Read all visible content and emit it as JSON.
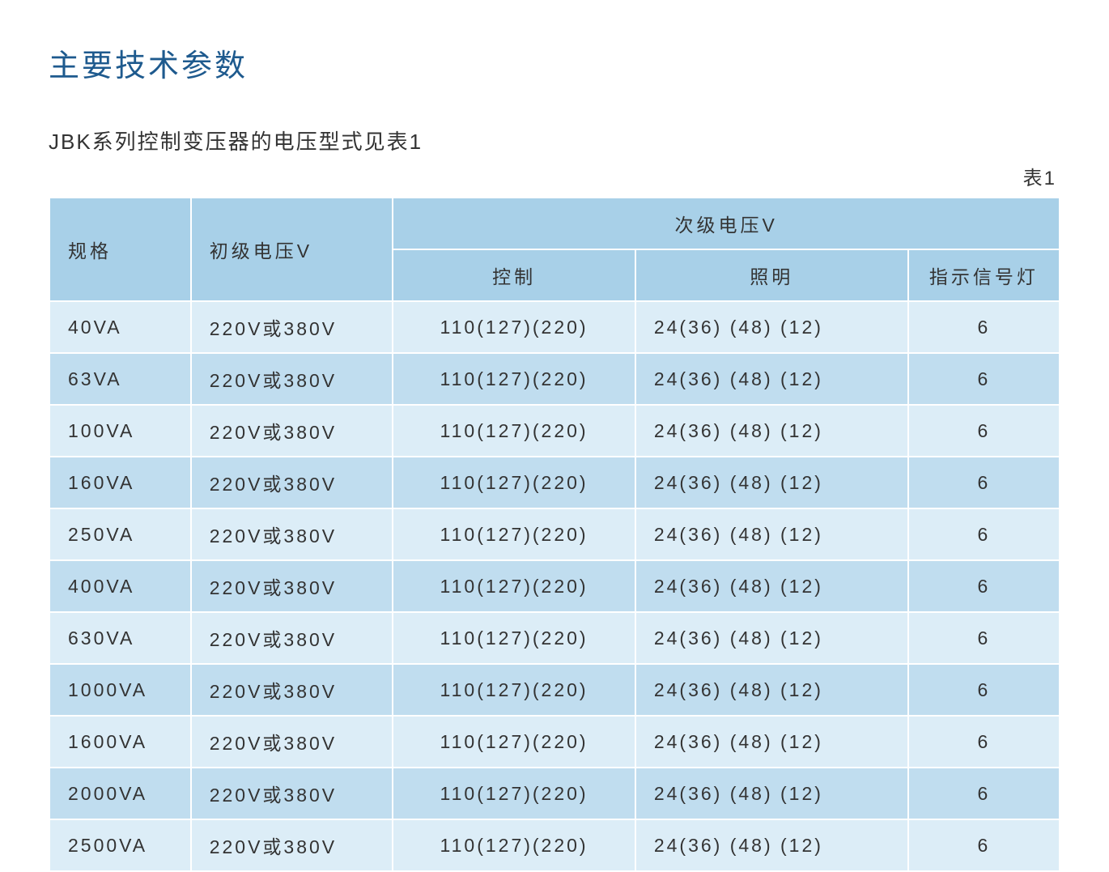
{
  "colors": {
    "title": "#1e5a8e",
    "text": "#333333",
    "background": "#ffffff",
    "header_bg": "#a8d0e8",
    "row_odd_bg": "#dcedf7",
    "row_even_bg": "#c0ddef",
    "border": "#ffffff"
  },
  "typography": {
    "title_fontsize": 38,
    "subtitle_fontsize": 26,
    "table_fontsize": 23,
    "letter_spacing": 3
  },
  "title": "主要技术参数",
  "subtitle": "JBK系列控制变压器的电压型式见表1",
  "table_label": "表1",
  "table": {
    "type": "table",
    "column_widths_pct": [
      14,
      20,
      24,
      27,
      15
    ],
    "headers": {
      "spec": "规格",
      "primary_voltage": "初级电压V",
      "secondary_voltage": "次级电压V",
      "control": "控制",
      "lighting": "照明",
      "indicator": "指示信号灯"
    },
    "rows": [
      {
        "spec": "40VA",
        "primary": "220V或380V",
        "control": "110(127)(220)",
        "lighting": "24(36) (48) (12)",
        "indicator": "6"
      },
      {
        "spec": "63VA",
        "primary": "220V或380V",
        "control": "110(127)(220)",
        "lighting": "24(36) (48) (12)",
        "indicator": "6"
      },
      {
        "spec": "100VA",
        "primary": "220V或380V",
        "control": "110(127)(220)",
        "lighting": "24(36) (48) (12)",
        "indicator": "6"
      },
      {
        "spec": "160VA",
        "primary": "220V或380V",
        "control": "110(127)(220)",
        "lighting": "24(36) (48) (12)",
        "indicator": "6"
      },
      {
        "spec": "250VA",
        "primary": "220V或380V",
        "control": "110(127)(220)",
        "lighting": "24(36) (48) (12)",
        "indicator": "6"
      },
      {
        "spec": "400VA",
        "primary": "220V或380V",
        "control": "110(127)(220)",
        "lighting": "24(36) (48) (12)",
        "indicator": "6"
      },
      {
        "spec": "630VA",
        "primary": "220V或380V",
        "control": "110(127)(220)",
        "lighting": "24(36) (48) (12)",
        "indicator": "6"
      },
      {
        "spec": "1000VA",
        "primary": "220V或380V",
        "control": "110(127)(220)",
        "lighting": "24(36) (48) (12)",
        "indicator": "6"
      },
      {
        "spec": "1600VA",
        "primary": "220V或380V",
        "control": "110(127)(220)",
        "lighting": "24(36) (48) (12)",
        "indicator": "6"
      },
      {
        "spec": "2000VA",
        "primary": "220V或380V",
        "control": "110(127)(220)",
        "lighting": "24(36) (48) (12)",
        "indicator": "6"
      },
      {
        "spec": "2500VA",
        "primary": "220V或380V",
        "control": "110(127)(220)",
        "lighting": "24(36) (48) (12)",
        "indicator": "6"
      }
    ]
  }
}
